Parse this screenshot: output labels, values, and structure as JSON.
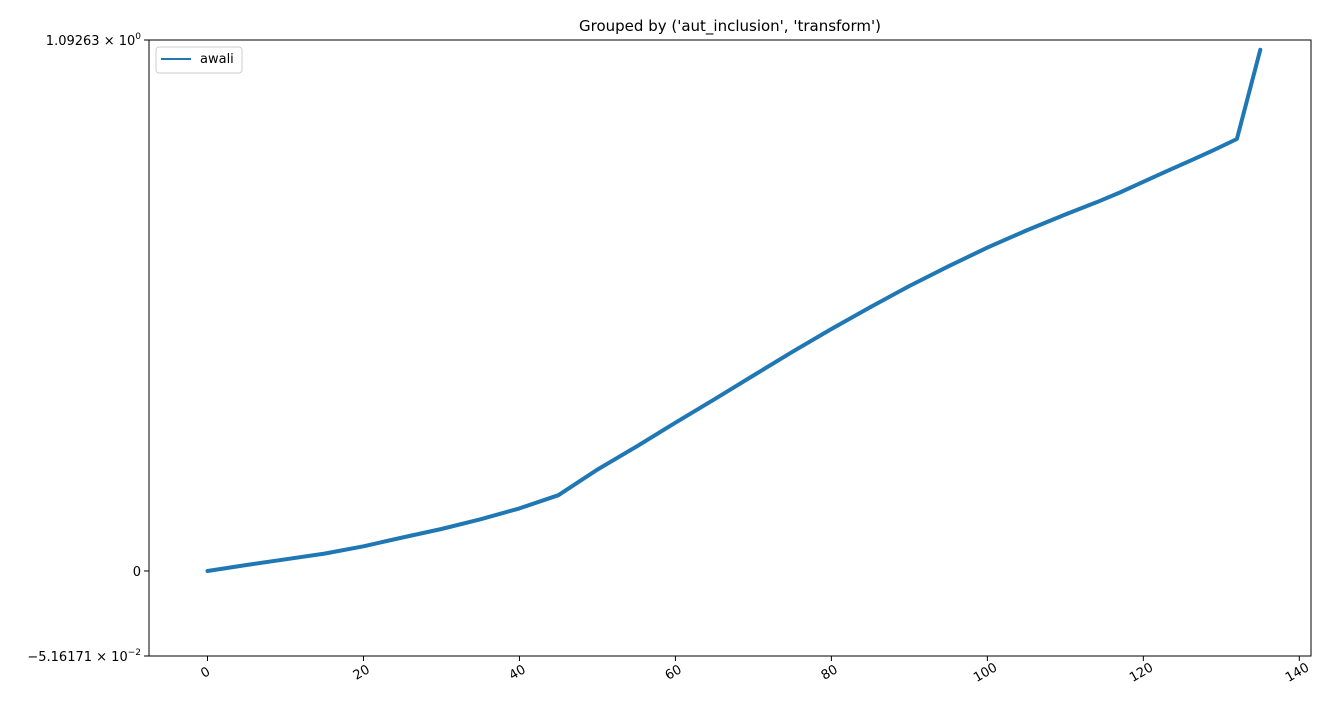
{
  "chart_data": {
    "type": "line",
    "title": "Grouped by ('aut_inclusion', 'transform')",
    "xlabel": "",
    "ylabel": "",
    "xlim": [
      -7.5,
      141.5
    ],
    "ylim": [
      -0.0516171,
      1.09263
    ],
    "xticks": [
      0,
      20,
      40,
      60,
      80,
      100,
      120,
      140
    ],
    "yticks": [
      {
        "value": 1.09263,
        "mantissa": "1.09263",
        "exp": "0"
      },
      {
        "value": 0,
        "mantissa": "0",
        "exp": ""
      },
      {
        "value": -0.0516171,
        "mantissa": "−5.16171",
        "exp": "−2"
      }
    ],
    "grid": false,
    "legend_position": "top-left",
    "series": [
      {
        "name": "awali",
        "color": "#1f77b4",
        "x": [
          0,
          5,
          10,
          15,
          20,
          25,
          30,
          35,
          40,
          45,
          50,
          55,
          60,
          65,
          70,
          75,
          80,
          85,
          90,
          95,
          100,
          105,
          110,
          114,
          117,
          120,
          123,
          126,
          129,
          132,
          135
        ],
        "y": [
          0,
          0.003,
          0.006,
          0.009,
          0.013,
          0.018,
          0.023,
          0.029,
          0.036,
          0.045,
          0.064,
          0.083,
          0.105,
          0.129,
          0.156,
          0.186,
          0.218,
          0.252,
          0.288,
          0.325,
          0.363,
          0.401,
          0.439,
          0.47,
          0.496,
          0.526,
          0.557,
          0.589,
          0.623,
          0.661,
          1.041
        ]
      }
    ]
  }
}
